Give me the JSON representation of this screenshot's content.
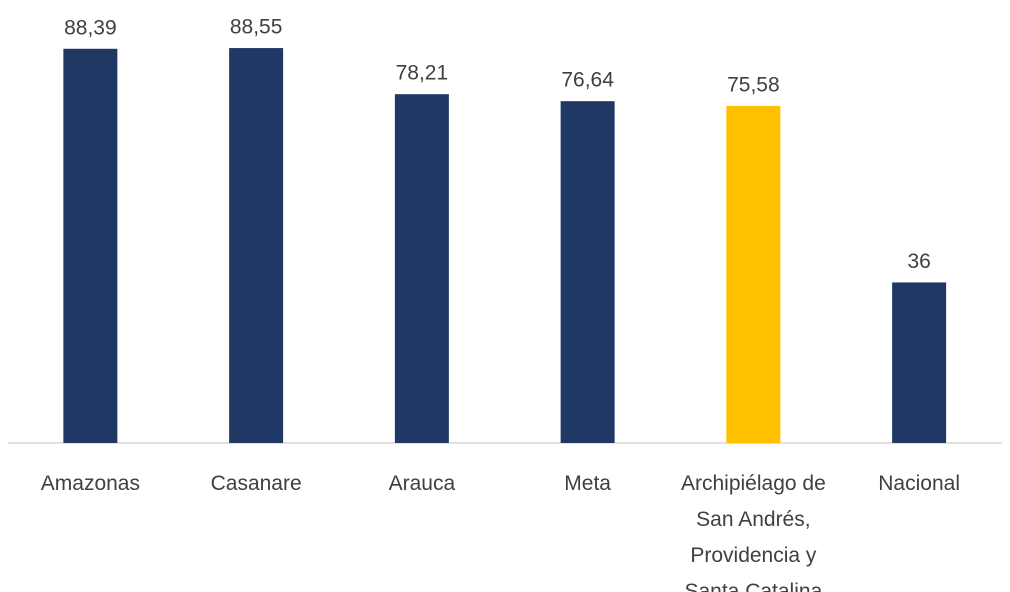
{
  "chart_data": {
    "type": "bar",
    "categories": [
      "Amazonas",
      "Casanare",
      "Arauca",
      "Meta",
      "Archipiélago de San Andrés, Providencia y Santa Catalina",
      "Nacional"
    ],
    "values": [
      88.39,
      88.55,
      78.21,
      76.64,
      75.58,
      36
    ],
    "value_labels": [
      "88,39",
      "88,55",
      "78,21",
      "76,64",
      "75,58",
      "36"
    ],
    "colors": [
      "#1f3864",
      "#1f3864",
      "#1f3864",
      "#1f3864",
      "#ffc000",
      "#1f3864"
    ]
  }
}
